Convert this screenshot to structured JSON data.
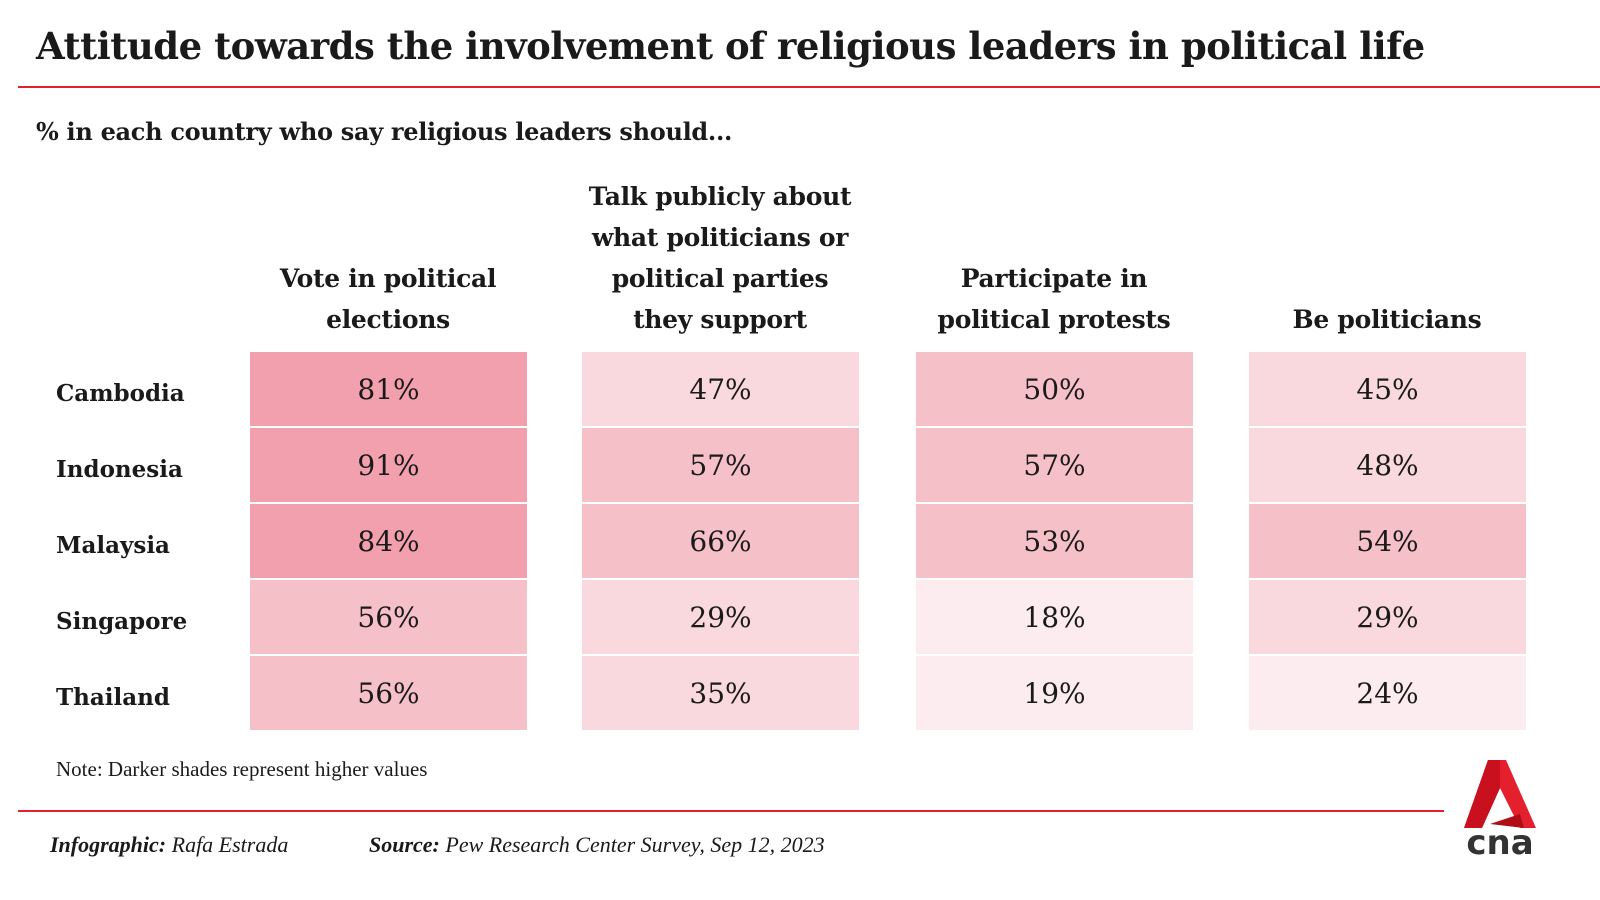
{
  "title": "Attitude towards the involvement of religious leaders in political life",
  "subtitle": "% in each country who say religious leaders should...",
  "note": "Note: Darker shades represent higher values",
  "footer": {
    "infographic_label": "Infographic:",
    "infographic_value": "Rafa Estrada",
    "source_label": "Source:",
    "source_value": "Pew Research Center Survey, Sep 12, 2023"
  },
  "logo_text": "cna",
  "colors": {
    "accent": "#e5202e",
    "bin_high": "#f3a0ae",
    "bin_mid": "#f6c0c8",
    "bin_low": "#fad9de",
    "bin_lowest": "#fdecef"
  },
  "chart_data": {
    "type": "heatmap",
    "title": "Attitude towards the involvement of religious leaders in political life",
    "columns": [
      [
        "Vote in political",
        "elections"
      ],
      [
        "Talk publicly about",
        "what politicians or",
        "political parties",
        "they support"
      ],
      [
        "Participate in",
        "political protests"
      ],
      [
        "Be politicians"
      ]
    ],
    "rows": [
      "Cambodia",
      "Indonesia",
      "Malaysia",
      "Singapore",
      "Thailand"
    ],
    "values": [
      [
        81,
        47,
        50,
        45
      ],
      [
        91,
        57,
        57,
        48
      ],
      [
        84,
        66,
        53,
        54
      ],
      [
        56,
        29,
        18,
        29
      ],
      [
        56,
        35,
        19,
        24
      ]
    ],
    "unit": "%"
  }
}
